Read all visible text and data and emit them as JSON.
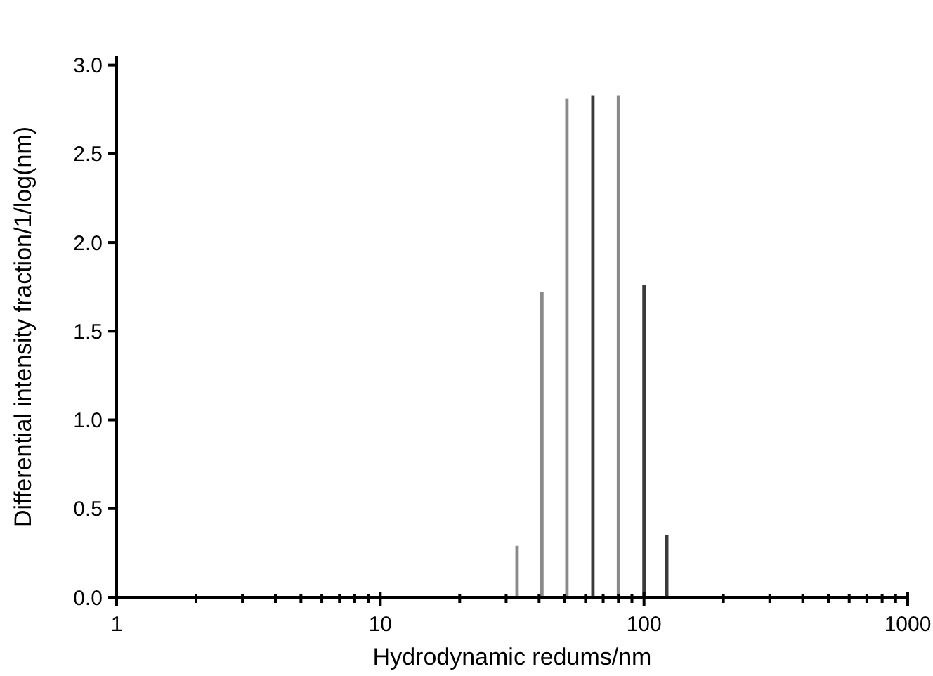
{
  "chart_data": {
    "type": "bar",
    "xlabel": "Hydrodynamic redums/nm",
    "ylabel": "Differential intensity fraction/1/log(nm)",
    "x": [
      33,
      41,
      51,
      64,
      80,
      100,
      122
    ],
    "values": [
      0.29,
      1.72,
      2.81,
      2.83,
      2.83,
      1.76,
      0.35
    ],
    "colors": [
      "#8a8a8a",
      "#8a8a8a",
      "#8a8a8a",
      "#3a3a3a",
      "#8a8a8a",
      "#3a3a3a",
      "#3a3a3a"
    ],
    "log": "x",
    "grid": false,
    "xlim": [
      1,
      1000
    ],
    "xticks": [
      1,
      {
        "value": 2,
        "label": null
      },
      {
        "value": 3,
        "label": null
      },
      {
        "value": 4,
        "label": null
      },
      {
        "value": 5,
        "label": null
      },
      {
        "value": 6,
        "label": null
      },
      {
        "value": 7,
        "label": null
      },
      {
        "value": 8,
        "label": null
      },
      {
        "value": 9,
        "label": null
      },
      10,
      {
        "value": 20,
        "label": null
      },
      {
        "value": 30,
        "label": null
      },
      {
        "value": 40,
        "label": null
      },
      {
        "value": 50,
        "label": null
      },
      {
        "value": 60,
        "label": null
      },
      {
        "value": 70,
        "label": null
      },
      {
        "value": 80,
        "label": null
      },
      {
        "value": 90,
        "label": null
      },
      100,
      {
        "value": 200,
        "label": null
      },
      {
        "value": 300,
        "label": null
      },
      {
        "value": 400,
        "label": null
      },
      {
        "value": 500,
        "label": null
      },
      {
        "value": 600,
        "label": null
      },
      {
        "value": 700,
        "label": null
      },
      {
        "value": 800,
        "label": null
      },
      {
        "value": 900,
        "label": null
      },
      1000
    ],
    "ylim": [
      0,
      3.05
    ],
    "yticks": [
      {
        "value": 0,
        "label": "0.0"
      },
      {
        "value": 0.5,
        "label": "0.5"
      },
      {
        "value": 1,
        "label": "1.0"
      },
      {
        "value": 1.5,
        "label": "1.5"
      },
      {
        "value": 2,
        "label": "2.0"
      },
      {
        "value": 2.5,
        "label": "2.5"
      },
      {
        "value": 3,
        "label": "3.0"
      }
    ]
  }
}
